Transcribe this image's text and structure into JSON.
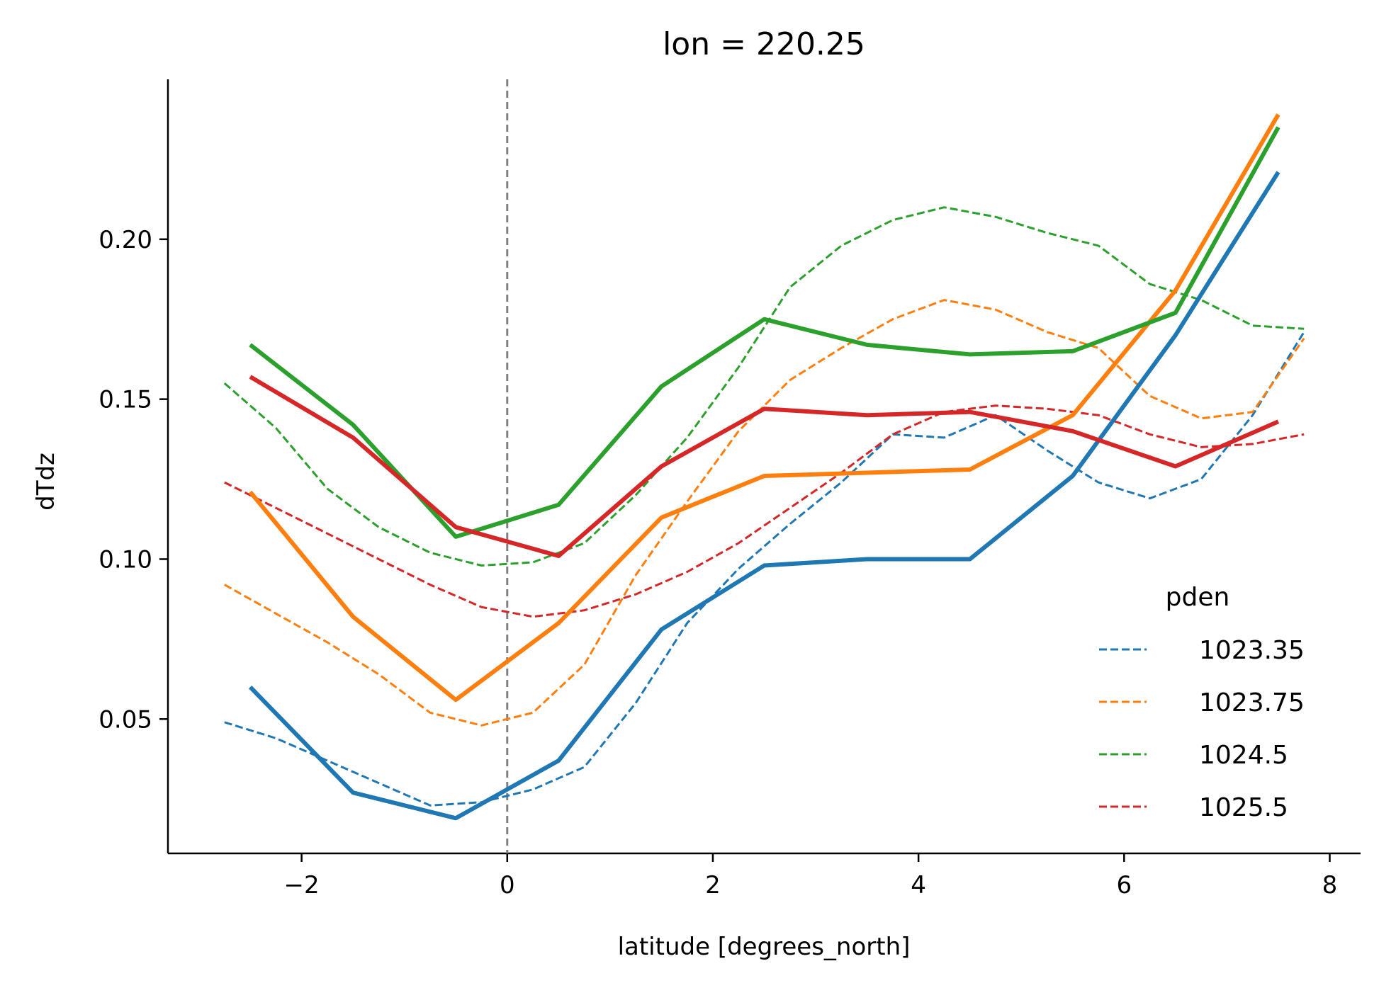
{
  "chart_data": {
    "type": "line",
    "title": "lon = 220.25",
    "xlabel": "latitude [degrees_north]",
    "ylabel": "dTdz",
    "xlim": [
      -3.3,
      8.3
    ],
    "ylim": [
      0.008,
      0.25
    ],
    "xticks": [
      -2,
      0,
      2,
      4,
      6,
      8
    ],
    "xtick_labels": [
      "−2",
      "0",
      "2",
      "4",
      "6",
      "8"
    ],
    "yticks": [
      0.05,
      0.1,
      0.15,
      0.2
    ],
    "ytick_labels": [
      "0.05",
      "0.10",
      "0.15",
      "0.20"
    ],
    "vline": {
      "x": 0,
      "style": "dashed",
      "color": "#808080"
    },
    "legend": {
      "title": "pden",
      "position": "lower right"
    },
    "colors": {
      "1023.35": "#1f77b4",
      "1023.75": "#ff7f0e",
      "1024.5": "#2ca02c",
      "1025.5": "#d62728"
    },
    "series": [
      {
        "name": "1023.35",
        "style": "dashed",
        "x": [
          -2.75,
          -2.25,
          -1.75,
          -1.25,
          -0.75,
          -0.25,
          0.25,
          0.75,
          1.25,
          1.75,
          2.25,
          2.75,
          3.25,
          3.75,
          4.25,
          4.75,
          5.25,
          5.75,
          6.25,
          6.75,
          7.25,
          7.75
        ],
        "y": [
          0.049,
          0.044,
          0.037,
          0.03,
          0.023,
          0.024,
          0.028,
          0.035,
          0.055,
          0.08,
          0.097,
          0.111,
          0.124,
          0.139,
          0.138,
          0.145,
          0.134,
          0.124,
          0.119,
          0.125,
          0.145,
          0.171
        ]
      },
      {
        "name": "1023.75",
        "style": "dashed",
        "x": [
          -2.75,
          -2.25,
          -1.75,
          -1.25,
          -0.75,
          -0.25,
          0.25,
          0.75,
          1.25,
          1.75,
          2.25,
          2.75,
          3.25,
          3.75,
          4.25,
          4.75,
          5.25,
          5.75,
          6.25,
          6.75,
          7.25,
          7.75
        ],
        "y": [
          0.092,
          0.083,
          0.074,
          0.064,
          0.052,
          0.048,
          0.052,
          0.067,
          0.095,
          0.118,
          0.14,
          0.156,
          0.166,
          0.175,
          0.181,
          0.178,
          0.171,
          0.166,
          0.151,
          0.144,
          0.146,
          0.169
        ]
      },
      {
        "name": "1024.5",
        "style": "dashed",
        "x": [
          -2.75,
          -2.25,
          -1.75,
          -1.25,
          -0.75,
          -0.25,
          0.25,
          0.75,
          1.25,
          1.75,
          2.25,
          2.75,
          3.25,
          3.75,
          4.25,
          4.75,
          5.25,
          5.75,
          6.25,
          6.75,
          7.25,
          7.75
        ],
        "y": [
          0.155,
          0.141,
          0.122,
          0.11,
          0.102,
          0.098,
          0.099,
          0.105,
          0.12,
          0.138,
          0.16,
          0.185,
          0.198,
          0.206,
          0.21,
          0.207,
          0.202,
          0.198,
          0.186,
          0.181,
          0.173,
          0.172
        ]
      },
      {
        "name": "1025.5",
        "style": "dashed",
        "x": [
          -2.75,
          -2.25,
          -1.75,
          -1.25,
          -0.75,
          -0.25,
          0.25,
          0.75,
          1.25,
          1.75,
          2.25,
          2.75,
          3.25,
          3.75,
          4.25,
          4.75,
          5.25,
          5.75,
          6.25,
          6.75,
          7.25,
          7.75
        ],
        "y": [
          0.124,
          0.116,
          0.108,
          0.1,
          0.092,
          0.085,
          0.082,
          0.084,
          0.089,
          0.096,
          0.105,
          0.116,
          0.127,
          0.139,
          0.146,
          0.148,
          0.147,
          0.145,
          0.139,
          0.135,
          0.136,
          0.139
        ]
      },
      {
        "name": "1023.35",
        "style": "solid",
        "x": [
          -2.5,
          -1.5,
          -0.5,
          0.5,
          1.5,
          2.5,
          3.5,
          4.5,
          5.5,
          6.5,
          7.5
        ],
        "y": [
          0.06,
          0.027,
          0.019,
          0.037,
          0.078,
          0.098,
          0.1,
          0.1,
          0.126,
          0.17,
          0.221
        ]
      },
      {
        "name": "1023.75",
        "style": "solid",
        "x": [
          -2.5,
          -1.5,
          -0.5,
          0.5,
          1.5,
          2.5,
          3.5,
          4.5,
          5.5,
          6.5,
          7.5
        ],
        "y": [
          0.121,
          0.082,
          0.056,
          0.08,
          0.113,
          0.126,
          0.127,
          0.128,
          0.145,
          0.184,
          0.239
        ]
      },
      {
        "name": "1024.5",
        "style": "solid",
        "x": [
          -2.5,
          -1.5,
          -0.5,
          0.5,
          1.5,
          2.5,
          3.5,
          4.5,
          5.5,
          6.5,
          7.5
        ],
        "y": [
          0.167,
          0.142,
          0.107,
          0.117,
          0.154,
          0.175,
          0.167,
          0.164,
          0.165,
          0.177,
          0.235
        ]
      },
      {
        "name": "1025.5",
        "style": "solid",
        "x": [
          -2.5,
          -1.5,
          -0.5,
          0.5,
          1.5,
          2.5,
          3.5,
          4.5,
          5.5,
          6.5,
          7.5
        ],
        "y": [
          0.157,
          0.138,
          0.11,
          0.101,
          0.129,
          0.147,
          0.145,
          0.146,
          0.14,
          0.129,
          0.143
        ]
      }
    ]
  }
}
